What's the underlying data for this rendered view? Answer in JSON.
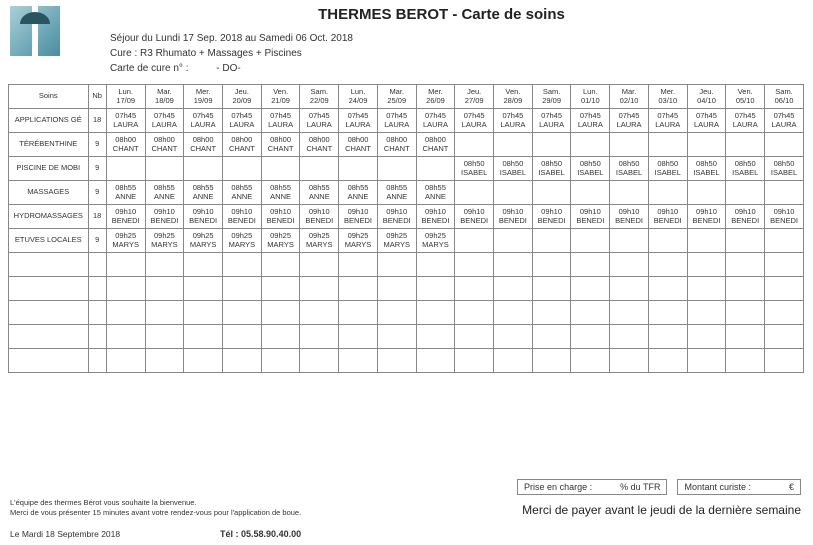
{
  "header": {
    "title": "THERMES BEROT - Carte de soins",
    "sejour": "Séjour du Lundi 17 Sep. 2018 au Samedi 06 Oct. 2018",
    "cure": "Cure : R3 Rhumato + Massages + Piscines",
    "carte_label": "Carte de cure n° :",
    "carte_value": "- DO-"
  },
  "columns": {
    "soins": "Soins",
    "nb": "Nb",
    "days": [
      {
        "dow": "Lun.",
        "date": "17/09"
      },
      {
        "dow": "Mar.",
        "date": "18/09"
      },
      {
        "dow": "Mer.",
        "date": "19/09"
      },
      {
        "dow": "Jeu.",
        "date": "20/09"
      },
      {
        "dow": "Ven.",
        "date": "21/09"
      },
      {
        "dow": "Sam.",
        "date": "22/09"
      },
      {
        "dow": "Lun.",
        "date": "24/09"
      },
      {
        "dow": "Mar.",
        "date": "25/09"
      },
      {
        "dow": "Mer.",
        "date": "26/09"
      },
      {
        "dow": "Jeu.",
        "date": "27/09"
      },
      {
        "dow": "Ven.",
        "date": "28/09"
      },
      {
        "dow": "Sam.",
        "date": "29/09"
      },
      {
        "dow": "Lun.",
        "date": "01/10"
      },
      {
        "dow": "Mar.",
        "date": "02/10"
      },
      {
        "dow": "Mer.",
        "date": "03/10"
      },
      {
        "dow": "Jeu.",
        "date": "04/10"
      },
      {
        "dow": "Ven.",
        "date": "05/10"
      },
      {
        "dow": "Sam.",
        "date": "06/10"
      }
    ]
  },
  "rows": [
    {
      "label": "APPLICATIONS GÉ",
      "nb": "18",
      "cells": [
        "07h45 LAURA",
        "07h45 LAURA",
        "07h45 LAURA",
        "07h45 LAURA",
        "07h45 LAURA",
        "07h45 LAURA",
        "07h45 LAURA",
        "07h45 LAURA",
        "07h45 LAURA",
        "07h45 LAURA",
        "07h45 LAURA",
        "07h45 LAURA",
        "07h45 LAURA",
        "07h45 LAURA",
        "07h45 LAURA",
        "07h45 LAURA",
        "07h45 LAURA",
        "07h45 LAURA"
      ]
    },
    {
      "label": "TÉRÉBENTHINE",
      "nb": "9",
      "cells": [
        "08h00 CHANT",
        "08h00 CHANT",
        "08h00 CHANT",
        "08h00 CHANT",
        "08h00 CHANT",
        "08h00 CHANT",
        "08h00 CHANT",
        "08h00 CHANT",
        "08h00 CHANT",
        "",
        "",
        "",
        "",
        "",
        "",
        "",
        "",
        ""
      ]
    },
    {
      "label": "PISCINE DE MOBI",
      "nb": "9",
      "cells": [
        "",
        "",
        "",
        "",
        "",
        "",
        "",
        "",
        "",
        "08h50 ISABEL",
        "08h50 ISABEL",
        "08h50 ISABEL",
        "08h50 ISABEL",
        "08h50 ISABEL",
        "08h50 ISABEL",
        "08h50 ISABEL",
        "08h50 ISABEL",
        "08h50 ISABEL"
      ]
    },
    {
      "label": "MASSAGES",
      "nb": "9",
      "cells": [
        "08h55 ANNE",
        "08h55 ANNE",
        "08h55 ANNE",
        "08h55 ANNE",
        "08h55 ANNE",
        "08h55 ANNE",
        "08h55 ANNE",
        "08h55 ANNE",
        "08h55 ANNE",
        "",
        "",
        "",
        "",
        "",
        "",
        "",
        "",
        ""
      ]
    },
    {
      "label": "HYDROMASSAGES",
      "nb": "18",
      "cells": [
        "09h10 BENEDI",
        "09h10 BENEDI",
        "09h10 BENEDI",
        "09h10 BENEDI",
        "09h10 BENEDI",
        "09h10 BENEDI",
        "09h10 BENEDI",
        "09h10 BENEDI",
        "09h10 BENEDI",
        "09h10 BENEDI",
        "09h10 BENEDI",
        "09h10 BENEDI",
        "09h10 BENEDI",
        "09h10 BENEDI",
        "09h10 BENEDI",
        "09h10 BENEDI",
        "09h10 BENEDI",
        "09h10 BENEDI"
      ]
    },
    {
      "label": "ETUVES LOCALES",
      "nb": "9",
      "cells": [
        "09h25 MARYS",
        "09h25 MARYS",
        "09h25 MARYS",
        "09h25 MARYS",
        "09h25 MARYS",
        "09h25 MARYS",
        "09h25 MARYS",
        "09h25 MARYS",
        "09h25 MARYS",
        "",
        "",
        "",
        "",
        "",
        "",
        "",
        "",
        ""
      ]
    }
  ],
  "empty_rows": 5,
  "footer": {
    "prise_label": "Prise en charge :",
    "prise_unit": "% du TFR",
    "montant_label": "Montant curiste :",
    "montant_unit": "€",
    "pay_note": "Merci de payer avant le jeudi de la dernière semaine",
    "fine1": "L'équipe des thermes Bérot vous souhaite la bienvenue.",
    "fine2": "Merci de vous présenter 15 minutes avant votre rendez-vous pour l'application de boue.",
    "date": "Le Mardi 18 Septembre 2018",
    "tel_label": "Tél :",
    "tel": "05.58.90.40.00"
  },
  "style": {
    "border_color": "#888888",
    "text_color": "#333333",
    "title_fontsize": 15,
    "cell_fontsize": 7.5,
    "background": "#ffffff"
  }
}
